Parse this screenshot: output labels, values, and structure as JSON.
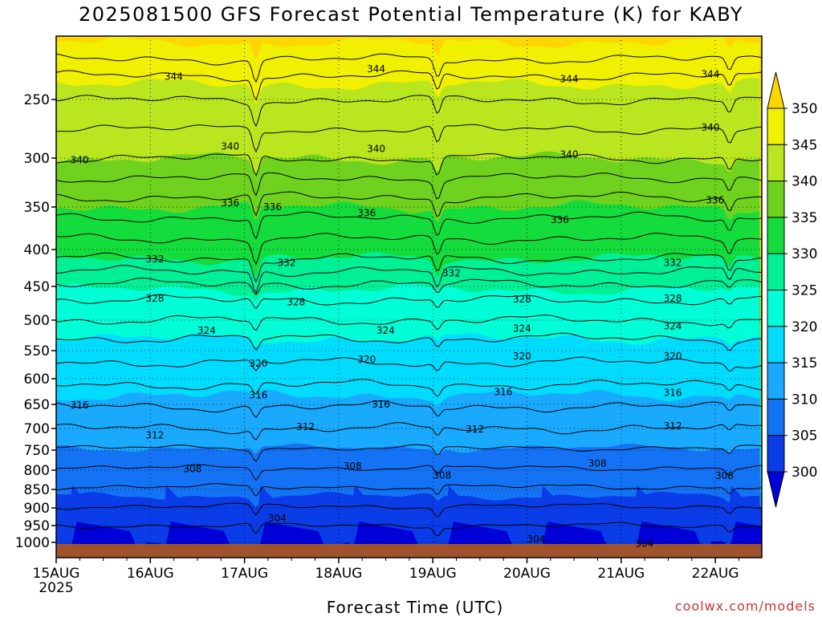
{
  "chart_data": {
    "type": "heatmap",
    "title": "2025081500 GFS Forecast Potential Temperature (K) for KABY",
    "xlabel": "Forecast Time (UTC)",
    "ylabel": "",
    "x_ticks": [
      "15AUG",
      "16AUG",
      "17AUG",
      "18AUG",
      "19AUG",
      "20AUG",
      "21AUG",
      "22AUG"
    ],
    "x_year": "2025",
    "y_ticks": [
      250,
      300,
      350,
      400,
      450,
      500,
      550,
      600,
      650,
      700,
      750,
      800,
      850,
      900,
      950,
      1000
    ],
    "y_axis": "pressure (hPa), reversed, log-like",
    "colorbar": {
      "levels": [
        300,
        305,
        310,
        315,
        320,
        325,
        330,
        335,
        340,
        345,
        350
      ],
      "colors": [
        "#0000d8",
        "#0a3ce8",
        "#1473f5",
        "#19aaff",
        "#00dcff",
        "#00ffd7",
        "#00f096",
        "#14dc3c",
        "#6ed21e",
        "#b9e61e",
        "#f0f000",
        "#ffd700"
      ],
      "extend": "both"
    },
    "contour_labels": [
      {
        "value": 344,
        "x_day": 1.15,
        "p": 232
      },
      {
        "value": 344,
        "x_day": 3.3,
        "p": 226
      },
      {
        "value": 344,
        "x_day": 5.35,
        "p": 234
      },
      {
        "value": 344,
        "x_day": 6.85,
        "p": 230
      },
      {
        "value": 340,
        "x_day": 0.15,
        "p": 302
      },
      {
        "value": 340,
        "x_day": 1.75,
        "p": 290
      },
      {
        "value": 340,
        "x_day": 3.3,
        "p": 292
      },
      {
        "value": 340,
        "x_day": 5.35,
        "p": 297
      },
      {
        "value": 340,
        "x_day": 6.85,
        "p": 274
      },
      {
        "value": 336,
        "x_day": 1.75,
        "p": 346
      },
      {
        "value": 336,
        "x_day": 2.2,
        "p": 350
      },
      {
        "value": 336,
        "x_day": 3.2,
        "p": 357
      },
      {
        "value": 336,
        "x_day": 5.25,
        "p": 365
      },
      {
        "value": 336,
        "x_day": 6.9,
        "p": 343
      },
      {
        "value": 332,
        "x_day": 0.95,
        "p": 413
      },
      {
        "value": 332,
        "x_day": 2.35,
        "p": 418
      },
      {
        "value": 332,
        "x_day": 4.1,
        "p": 432
      },
      {
        "value": 332,
        "x_day": 6.45,
        "p": 418
      },
      {
        "value": 328,
        "x_day": 0.95,
        "p": 468
      },
      {
        "value": 328,
        "x_day": 2.45,
        "p": 473
      },
      {
        "value": 328,
        "x_day": 4.85,
        "p": 469
      },
      {
        "value": 328,
        "x_day": 6.45,
        "p": 468
      },
      {
        "value": 324,
        "x_day": 1.5,
        "p": 517
      },
      {
        "value": 324,
        "x_day": 3.4,
        "p": 517
      },
      {
        "value": 324,
        "x_day": 4.85,
        "p": 514
      },
      {
        "value": 324,
        "x_day": 6.45,
        "p": 510
      },
      {
        "value": 320,
        "x_day": 2.05,
        "p": 573
      },
      {
        "value": 320,
        "x_day": 3.2,
        "p": 566
      },
      {
        "value": 320,
        "x_day": 4.85,
        "p": 560
      },
      {
        "value": 320,
        "x_day": 6.45,
        "p": 560
      },
      {
        "value": 316,
        "x_day": 0.15,
        "p": 652
      },
      {
        "value": 316,
        "x_day": 2.05,
        "p": 632
      },
      {
        "value": 316,
        "x_day": 3.35,
        "p": 650
      },
      {
        "value": 316,
        "x_day": 4.65,
        "p": 626
      },
      {
        "value": 316,
        "x_day": 6.45,
        "p": 627
      },
      {
        "value": 312,
        "x_day": 0.95,
        "p": 716
      },
      {
        "value": 312,
        "x_day": 2.55,
        "p": 697
      },
      {
        "value": 312,
        "x_day": 4.35,
        "p": 702
      },
      {
        "value": 312,
        "x_day": 6.45,
        "p": 695
      },
      {
        "value": 308,
        "x_day": 1.35,
        "p": 797
      },
      {
        "value": 308,
        "x_day": 3.05,
        "p": 790
      },
      {
        "value": 308,
        "x_day": 4.0,
        "p": 814
      },
      {
        "value": 308,
        "x_day": 5.65,
        "p": 783
      },
      {
        "value": 308,
        "x_day": 7.0,
        "p": 815
      },
      {
        "value": 304,
        "x_day": 2.25,
        "p": 929
      },
      {
        "value": 304,
        "x_day": 5.0,
        "p": 990
      },
      {
        "value": 304,
        "x_day": 6.15,
        "p": 1004
      }
    ]
  },
  "credit": "coolwx.com/models",
  "colors": {
    "ground": "#a0522d",
    "background": "#ffffff",
    "credit": "#cc3333"
  }
}
